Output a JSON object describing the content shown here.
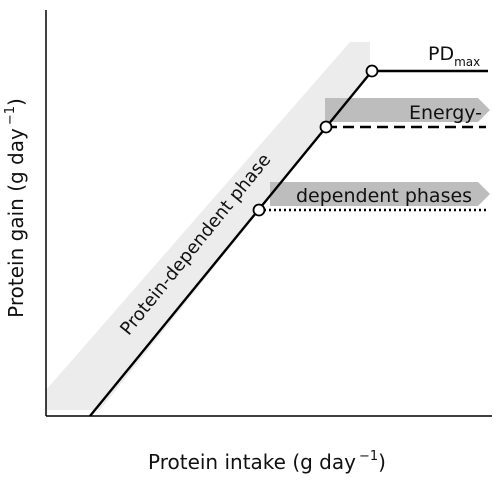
{
  "axes": {
    "x_label": "Protein intake (g day",
    "x_exponent": "−1",
    "x_closing": ")",
    "y_label": "Protein gain (g day",
    "y_exponent": "−1",
    "y_closing": ")"
  },
  "phase_labels": {
    "protein_dependent": "Protein-dependent phase",
    "energy_top": "Energy-",
    "energy_bottom": "dependent phases"
  },
  "pd_max": {
    "main": "PD",
    "subscript": "max"
  },
  "colors": {
    "line": "#000000",
    "band_light": "#ececec",
    "arrow_gray": "#bdbdbd"
  }
}
